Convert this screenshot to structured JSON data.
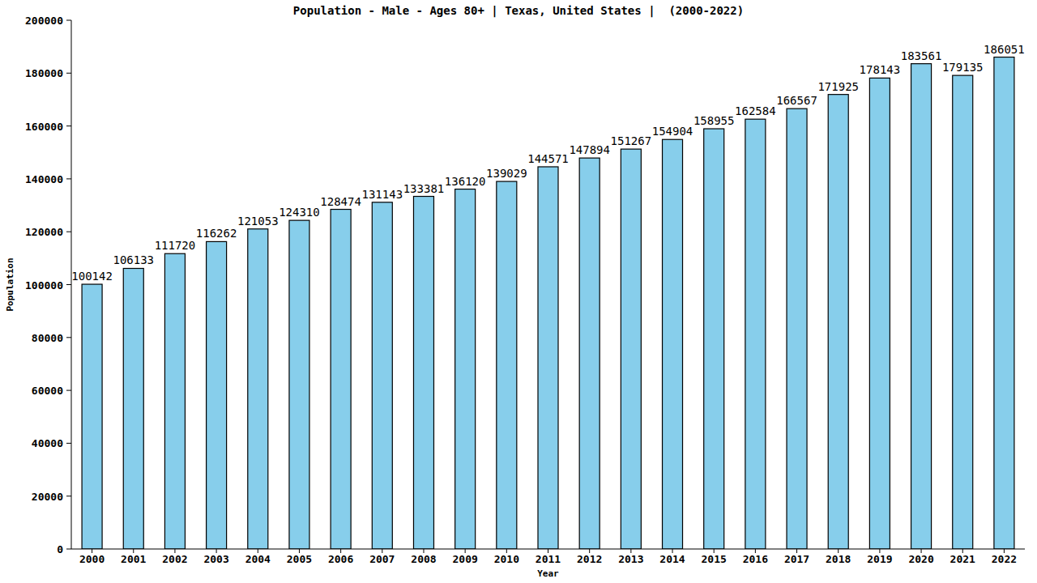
{
  "chart_data": {
    "type": "bar",
    "title": "Population - Male - Ages 80+ | Texas, United States |  (2000-2022)",
    "x_label": "Year",
    "y_label": "Population",
    "categories": [
      "2000",
      "2001",
      "2002",
      "2003",
      "2004",
      "2005",
      "2006",
      "2007",
      "2008",
      "2009",
      "2010",
      "2011",
      "2012",
      "2013",
      "2014",
      "2015",
      "2016",
      "2017",
      "2018",
      "2019",
      "2020",
      "2021",
      "2022"
    ],
    "values": [
      100142,
      106133,
      111720,
      116262,
      121053,
      124310,
      128474,
      131143,
      133381,
      136120,
      139029,
      144571,
      147894,
      151267,
      154904,
      158955,
      162584,
      166567,
      171925,
      178143,
      183561,
      179135,
      186051
    ],
    "color": "#87ceeb",
    "ylim": [
      0,
      200000
    ],
    "yticks": [
      0,
      20000,
      40000,
      60000,
      80000,
      100000,
      120000,
      140000,
      160000,
      180000,
      200000
    ],
    "grid": false,
    "data_labels": true
  }
}
